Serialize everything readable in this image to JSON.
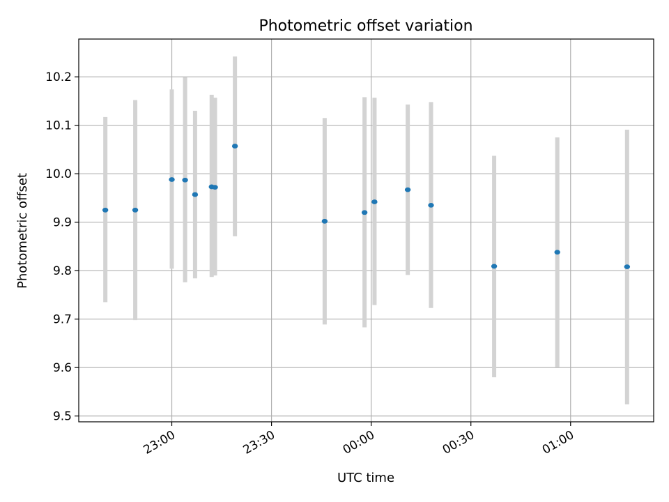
{
  "chart_data": {
    "type": "scatter",
    "title": "Photometric offset variation",
    "xlabel": "UTC time",
    "ylabel": "Photometric offset",
    "x_axis": {
      "kind": "time",
      "ticks": [
        "23:00",
        "23:30",
        "00:00",
        "00:30",
        "01:00"
      ],
      "range": [
        "22:32",
        "01:25"
      ]
    },
    "y_axis": {
      "ticks": [
        "9.5",
        "9.6",
        "9.7",
        "9.8",
        "9.9",
        "10.0",
        "10.1",
        "10.2"
      ],
      "range": [
        9.488,
        10.278
      ]
    },
    "grid": true,
    "marker_color": "#1f77b4",
    "errorbar_color": "#d3d3d3",
    "points": [
      {
        "time": "22:40",
        "y": 9.925,
        "ylow": 9.735,
        "yhigh": 10.117
      },
      {
        "time": "22:49",
        "y": 9.925,
        "ylow": 9.698,
        "yhigh": 10.152
      },
      {
        "time": "23:00",
        "y": 9.988,
        "ylow": 9.804,
        "yhigh": 10.174
      },
      {
        "time": "23:04",
        "y": 9.987,
        "ylow": 9.776,
        "yhigh": 10.199
      },
      {
        "time": "23:07",
        "y": 9.957,
        "ylow": 9.784,
        "yhigh": 10.13
      },
      {
        "time": "23:12",
        "y": 9.973,
        "ylow": 9.787,
        "yhigh": 10.163
      },
      {
        "time": "23:13",
        "y": 9.972,
        "ylow": 9.79,
        "yhigh": 10.157
      },
      {
        "time": "23:19",
        "y": 10.057,
        "ylow": 9.871,
        "yhigh": 10.242
      },
      {
        "time": "23:46",
        "y": 9.902,
        "ylow": 9.689,
        "yhigh": 10.115
      },
      {
        "time": "23:58",
        "y": 9.92,
        "ylow": 9.683,
        "yhigh": 10.158
      },
      {
        "time": "00:01",
        "y": 9.942,
        "ylow": 9.729,
        "yhigh": 10.157
      },
      {
        "time": "00:11",
        "y": 9.967,
        "ylow": 9.791,
        "yhigh": 10.143
      },
      {
        "time": "00:18",
        "y": 9.935,
        "ylow": 9.723,
        "yhigh": 10.148
      },
      {
        "time": "00:37",
        "y": 9.809,
        "ylow": 9.58,
        "yhigh": 10.037
      },
      {
        "time": "00:56",
        "y": 9.838,
        "ylow": 9.601,
        "yhigh": 10.075
      },
      {
        "time": "01:17",
        "y": 9.808,
        "ylow": 9.524,
        "yhigh": 10.091
      }
    ]
  }
}
